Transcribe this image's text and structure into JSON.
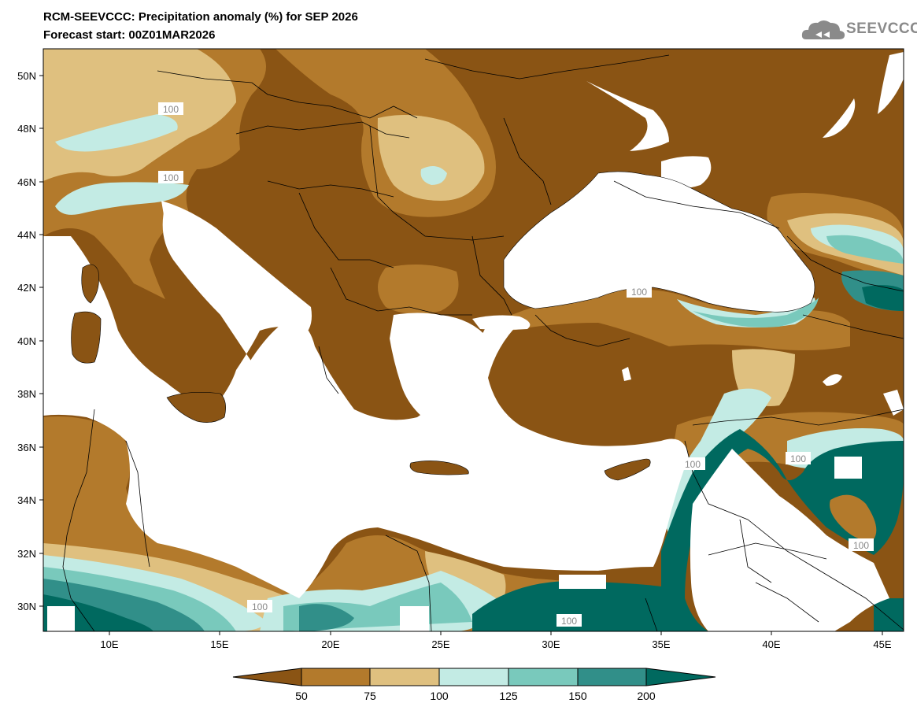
{
  "header": {
    "title": "RCM-SEEVCCC: Precipitation anomaly (%) for SEP 2026",
    "subtitle": "Forecast start: 00Z01MAR2026",
    "logo_text": "SEEVCCC"
  },
  "map": {
    "lat_labels": [
      "50N",
      "48N",
      "46N",
      "44N",
      "42N",
      "40N",
      "38N",
      "36N",
      "34N",
      "32N",
      "30N"
    ],
    "lon_labels": [
      "10E",
      "15E",
      "20E",
      "25E",
      "30E",
      "35E",
      "40E",
      "45E"
    ],
    "contour_label": "100"
  },
  "colorbar": {
    "colors": [
      "#8a5414",
      "#b37a2c",
      "#dfc07f",
      "#c3ebe4",
      "#79c9bc",
      "#318f89",
      "#00695f"
    ],
    "labels": [
      "50",
      "75",
      "100",
      "125",
      "150",
      "200"
    ]
  }
}
